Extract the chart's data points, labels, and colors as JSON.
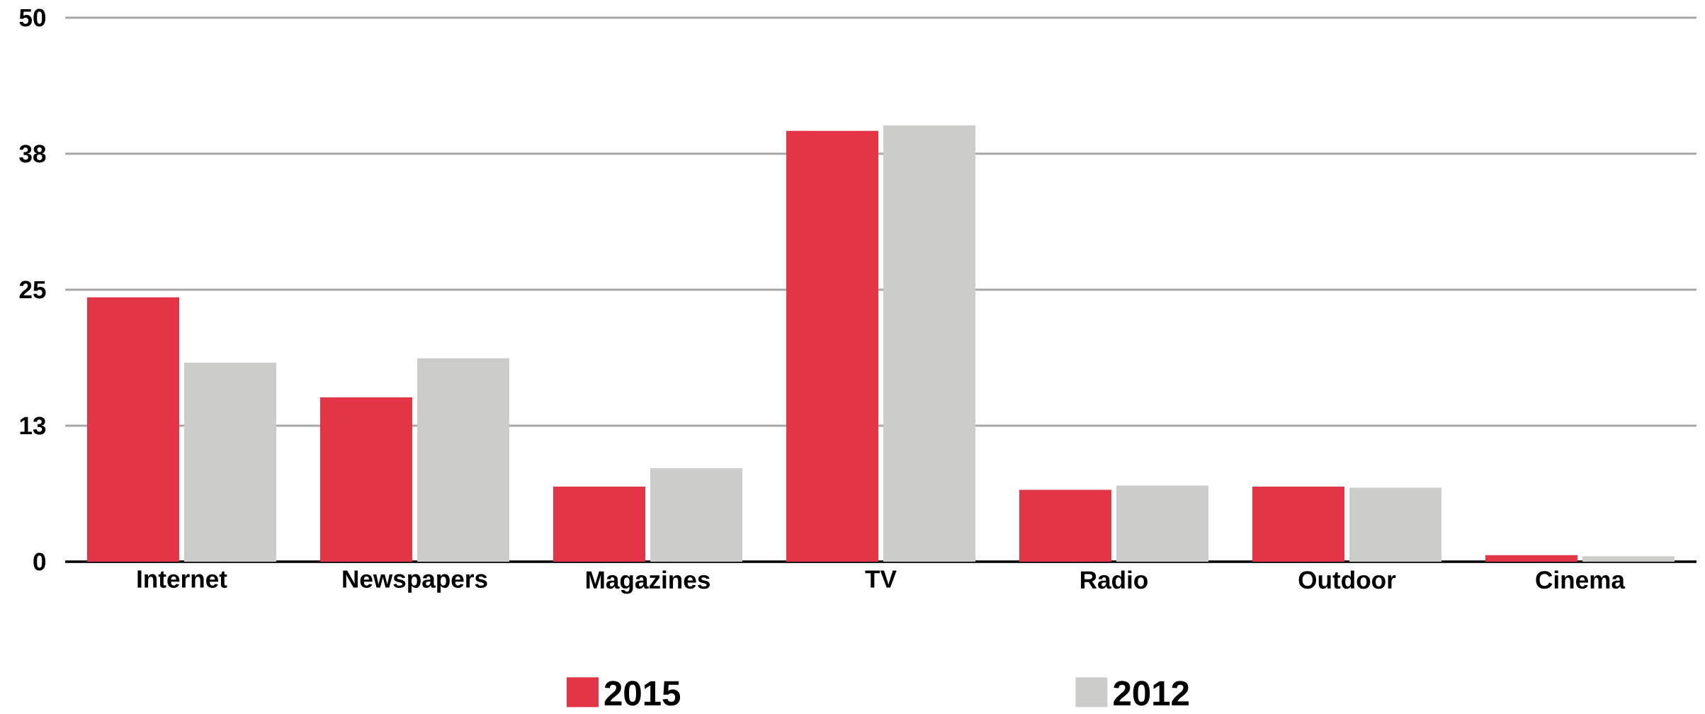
{
  "chart_data": {
    "type": "bar",
    "categories": [
      "Internet",
      "Newspapers",
      "Magazines",
      "TV",
      "Radio",
      "Outdoor",
      "Cinema"
    ],
    "series": [
      {
        "name": "2015",
        "color": "#e33545",
        "values": [
          24.3,
          15.1,
          6.9,
          39.6,
          6.6,
          6.9,
          0.6
        ]
      },
      {
        "name": "2012",
        "color": "#cccccb",
        "values": [
          18.3,
          18.7,
          8.6,
          40.1,
          7.0,
          6.8,
          0.5
        ]
      }
    ],
    "ylim": [
      0,
      50
    ],
    "yticks": [
      0,
      {
        "value": 12.5,
        "label": "13"
      },
      25,
      {
        "value": 37.5,
        "label": "38"
      },
      50
    ],
    "grid": "y",
    "legend": "bottom"
  }
}
